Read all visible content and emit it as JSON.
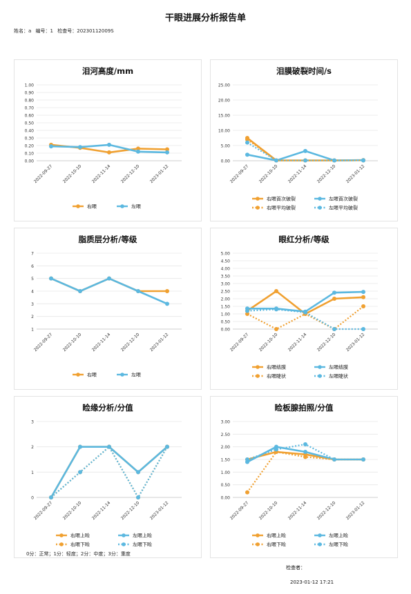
{
  "report": {
    "title": "干眼进展分析报告单",
    "patient_name": "姓名：a",
    "patient_no": "编号：1",
    "exam_no": "检查号：20230112009S",
    "footnote": "0分：正常；1分：轻度；2分：中度；3分：重度",
    "checker": "检查者：",
    "timestamp": "2023-01-12 17:21"
  },
  "colors": {
    "orange": "#f0a030",
    "blue": "#5bb8e0",
    "axis": "#cfcfcf"
  },
  "chart_data": [
    {
      "type": "line",
      "title": "泪河高度/mm",
      "categories": [
        "2022-09-27",
        "2022-10-10",
        "2022-11-14",
        "2022-12-10",
        "2023-01-12"
      ],
      "yticks": [
        "0.00",
        "0.10",
        "0.20",
        "0.30",
        "0.40",
        "0.50",
        "0.60",
        "0.70",
        "0.80",
        "0.90",
        "1.00"
      ],
      "ylim": [
        0,
        1
      ],
      "series": [
        {
          "name": "右眼",
          "color": "orange",
          "dashed": false,
          "values": [
            0.21,
            0.17,
            0.11,
            0.16,
            0.15
          ]
        },
        {
          "name": "左眼",
          "color": "blue",
          "dashed": false,
          "values": [
            0.19,
            0.18,
            0.21,
            0.12,
            0.11
          ]
        }
      ]
    },
    {
      "type": "line",
      "title": "泪膜破裂时间/s",
      "categories": [
        "2022-09-27",
        "2022-10-10",
        "2022-11-14",
        "2022-12-10",
        "2023-01-12"
      ],
      "yticks": [
        "0.00",
        "5.00",
        "10.00",
        "15.00",
        "20.00",
        "25.00"
      ],
      "ylim": [
        0,
        25
      ],
      "series": [
        {
          "name": "右眼首次破裂",
          "color": "orange",
          "dashed": false,
          "values": [
            7.5,
            0.1,
            0.1,
            0.1,
            0.2
          ]
        },
        {
          "name": "左眼首次破裂",
          "color": "blue",
          "dashed": false,
          "values": [
            2.0,
            0.1,
            3.2,
            0.1,
            0.2
          ]
        },
        {
          "name": "右眼平均破裂",
          "color": "orange",
          "dashed": true,
          "values": [
            7.0,
            0.1,
            0.1,
            0.1,
            0.1
          ]
        },
        {
          "name": "左眼平均破裂",
          "color": "blue",
          "dashed": true,
          "values": [
            6.0,
            0.1,
            0.1,
            0.1,
            0.1
          ]
        }
      ]
    },
    {
      "type": "line",
      "title": "脂质层分析/等级",
      "categories": [
        "2022-09-27",
        "2022-10-10",
        "2022-11-14",
        "2022-12-10",
        "2023-01-12"
      ],
      "yticks": [
        "1",
        "2",
        "3",
        "4",
        "5",
        "6",
        "7"
      ],
      "ylim": [
        1,
        7
      ],
      "series": [
        {
          "name": "右眼",
          "color": "orange",
          "dashed": false,
          "values": [
            5,
            4,
            5,
            4,
            4
          ]
        },
        {
          "name": "左眼",
          "color": "blue",
          "dashed": false,
          "values": [
            5,
            4,
            5,
            4,
            3
          ]
        }
      ]
    },
    {
      "type": "line",
      "title": "眼红分析/等级",
      "categories": [
        "2022-09-27",
        "2022-10-10",
        "2022-11-14",
        "2022-12-10",
        "2023-01-12"
      ],
      "yticks": [
        "0.00",
        "0.50",
        "1.00",
        "1.50",
        "2.00",
        "2.50",
        "3.00",
        "3.50",
        "4.00",
        "4.50",
        "5.00"
      ],
      "ylim": [
        0,
        5
      ],
      "series": [
        {
          "name": "右眼结膜",
          "color": "orange",
          "dashed": false,
          "values": [
            1.2,
            2.5,
            1.0,
            2.0,
            2.1
          ]
        },
        {
          "name": "左眼结膜",
          "color": "blue",
          "dashed": false,
          "values": [
            1.35,
            1.35,
            1.15,
            2.4,
            2.45
          ]
        },
        {
          "name": "右眼睫状",
          "color": "orange",
          "dashed": true,
          "values": [
            1.0,
            0.0,
            1.0,
            0.0,
            1.5
          ]
        },
        {
          "name": "左眼睫状",
          "color": "blue",
          "dashed": true,
          "values": [
            1.2,
            1.3,
            1.1,
            0.0,
            0.0
          ]
        }
      ]
    },
    {
      "type": "line",
      "title": "睑缘分析/分值",
      "categories": [
        "2022-09-27",
        "2022-10-10",
        "2022-11-14",
        "2022-12-10",
        "2023-01-12"
      ],
      "yticks": [
        "0",
        "1",
        "2",
        "3"
      ],
      "ylim": [
        0,
        3
      ],
      "series": [
        {
          "name": "右眼上睑",
          "color": "orange",
          "dashed": false,
          "values": [
            0,
            2,
            2,
            1,
            2
          ]
        },
        {
          "name": "左眼上睑",
          "color": "blue",
          "dashed": false,
          "values": [
            0,
            2,
            2,
            1,
            2
          ]
        },
        {
          "name": "右眼下睑",
          "color": "orange",
          "dashed": true,
          "values": [
            0,
            1,
            2,
            0,
            2
          ]
        },
        {
          "name": "左眼下睑",
          "color": "blue",
          "dashed": true,
          "values": [
            0,
            1,
            2,
            0,
            2
          ]
        }
      ]
    },
    {
      "type": "line",
      "title": "睑板腺拍照/分值",
      "categories": [
        "2022-09-27",
        "2022-10-10",
        "2022-11-14",
        "2022-12-10",
        "2023-01-12"
      ],
      "yticks": [
        "0.00",
        "0.50",
        "1.00",
        "1.50",
        "2.00",
        "2.50",
        "3.00"
      ],
      "ylim": [
        0,
        3
      ],
      "series": [
        {
          "name": "右眼上睑",
          "color": "orange",
          "dashed": false,
          "values": [
            1.5,
            1.8,
            1.7,
            1.5,
            1.5
          ]
        },
        {
          "name": "左眼上睑",
          "color": "blue",
          "dashed": false,
          "values": [
            1.4,
            2.0,
            1.8,
            1.5,
            1.5
          ]
        },
        {
          "name": "右眼下睑",
          "color": "orange",
          "dashed": true,
          "values": [
            0.2,
            1.8,
            1.6,
            1.5,
            1.5
          ]
        },
        {
          "name": "左眼下睑",
          "color": "blue",
          "dashed": true,
          "values": [
            1.5,
            1.9,
            2.1,
            1.5,
            1.5
          ]
        }
      ]
    }
  ]
}
